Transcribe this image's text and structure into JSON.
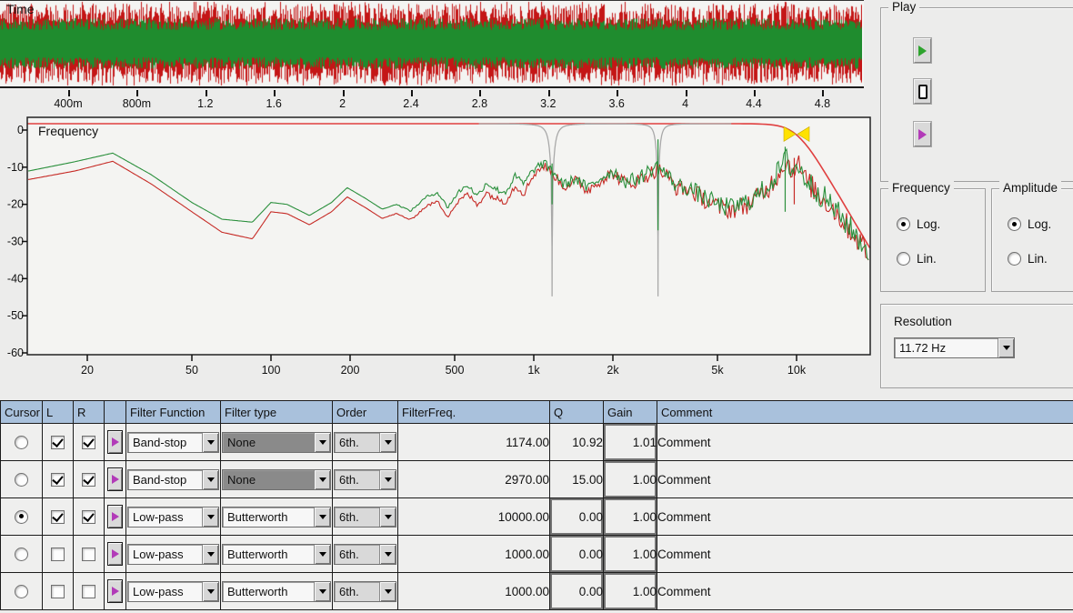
{
  "colors": {
    "window_bg": "#ececeb",
    "plot_bg": "#f4f4f2",
    "wave_red": "#c41616",
    "wave_green": "#1f8c2e",
    "spec_red": "#c62b26",
    "spec_green": "#2a8f3c",
    "filter_red": "#e04040",
    "notch_gray": "#a9a9a9",
    "marker_yellow": "#ffe200",
    "header_blue": "#a9c1dc",
    "disabled_gray": "#8a8a8a"
  },
  "time_plot": {
    "title": "Time",
    "x_tick_labels": [
      "400m",
      "800m",
      "1.2",
      "1.6",
      "2",
      "2.4",
      "2.8",
      "3.2",
      "3.6",
      "4",
      "4.4",
      "4.8"
    ]
  },
  "freq_plot": {
    "title": "Frequency",
    "y_tick_labels": [
      "0",
      "-10",
      "-20",
      "-30",
      "-40",
      "-50",
      "-60"
    ],
    "x_tick_labels": [
      "20",
      "50",
      "100",
      "200",
      "500",
      "1k",
      "2k",
      "5k",
      "10k"
    ]
  },
  "chart_data": [
    {
      "type": "line",
      "name": "time-waveform",
      "title": "Time",
      "x_ticks": [
        "400m",
        "800m",
        "1.2",
        "1.6",
        "2",
        "2.4",
        "2.8",
        "3.2",
        "3.6",
        "4",
        "4.4",
        "4.8"
      ],
      "description": "Stereo broadband noise vs time; red channel has larger peak amplitude, green channel denser core band",
      "series": [
        {
          "name": "left",
          "color": "#c41616"
        },
        {
          "name": "right",
          "color": "#1f8c2e"
        }
      ]
    },
    {
      "type": "line",
      "name": "frequency-spectrum",
      "title": "Frequency",
      "x_scale": "log",
      "xlim": [
        11.8,
        19000
      ],
      "ylim": [
        -60,
        0
      ],
      "y_ticks": [
        0,
        -10,
        -20,
        -30,
        -40,
        -50,
        -60
      ],
      "x_ticks": [
        "20",
        "50",
        "100",
        "200",
        "500",
        "1k",
        "2k",
        "5k",
        "10k"
      ],
      "jitter": {
        "start_freq": 260,
        "factor": 2.0,
        "max_db": 3.4
      },
      "series": [
        {
          "name": "left-spectrum",
          "color": "#c62b26",
          "spikes": [
            [
              9800,
              -7.5,
              -20
            ]
          ],
          "points": [
            [
              12,
              -13.3
            ],
            [
              18,
              -11
            ],
            [
              25,
              -8.4
            ],
            [
              35,
              -14.5
            ],
            [
              50,
              -22
            ],
            [
              65,
              -27.5
            ],
            [
              85,
              -29.3
            ],
            [
              100,
              -22
            ],
            [
              115,
              -22.5
            ],
            [
              140,
              -25.5
            ],
            [
              170,
              -22
            ],
            [
              195,
              -18
            ],
            [
              230,
              -21
            ],
            [
              265,
              -23.8
            ],
            [
              300,
              -22.5
            ],
            [
              340,
              -24.2
            ],
            [
              390,
              -20.5
            ],
            [
              430,
              -19.2
            ],
            [
              470,
              -23.2
            ],
            [
              520,
              -19
            ],
            [
              560,
              -17.2
            ],
            [
              610,
              -20.2
            ],
            [
              660,
              -16.8
            ],
            [
              720,
              -18.5
            ],
            [
              780,
              -19.2
            ],
            [
              850,
              -15
            ],
            [
              920,
              -17
            ],
            [
              1000,
              -11.8
            ],
            [
              1090,
              -9.6
            ],
            [
              1174,
              -11.4
            ],
            [
              1300,
              -15.3
            ],
            [
              1450,
              -13.6
            ],
            [
              1600,
              -16.3
            ],
            [
              1800,
              -13.3
            ],
            [
              2000,
              -11.6
            ],
            [
              2250,
              -14.5
            ],
            [
              2500,
              -13.6
            ],
            [
              2750,
              -11.8
            ],
            [
              2970,
              -10.6
            ],
            [
              3200,
              -12.4
            ],
            [
              3500,
              -15.6
            ],
            [
              3900,
              -16
            ],
            [
              4400,
              -18.4
            ],
            [
              5000,
              -20.6
            ],
            [
              5600,
              -21.4
            ],
            [
              6200,
              -20.6
            ],
            [
              7000,
              -18.6
            ],
            [
              7800,
              -15.6
            ],
            [
              8600,
              -11.4
            ],
            [
              9100,
              -8
            ],
            [
              9600,
              -11.2
            ],
            [
              10000,
              -8.2
            ],
            [
              10800,
              -13.4
            ],
            [
              12000,
              -17
            ],
            [
              13500,
              -20.4
            ],
            [
              15000,
              -24.4
            ],
            [
              16500,
              -28
            ],
            [
              18000,
              -31.4
            ],
            [
              19000,
              -34
            ]
          ]
        },
        {
          "name": "right-spectrum",
          "color": "#2a8f3c",
          "spikes": [
            [
              1174,
              -9,
              -20
            ],
            [
              2970,
              -2.5,
              -27
            ],
            [
              9050,
              -4.5,
              -22
            ]
          ],
          "points": [
            [
              12,
              -11
            ],
            [
              18,
              -8.5
            ],
            [
              25,
              -6.2
            ],
            [
              35,
              -12
            ],
            [
              50,
              -19.5
            ],
            [
              65,
              -24
            ],
            [
              85,
              -24.8
            ],
            [
              100,
              -19.5
            ],
            [
              115,
              -20
            ],
            [
              140,
              -23
            ],
            [
              170,
              -19.5
            ],
            [
              195,
              -15.5
            ],
            [
              230,
              -18.5
            ],
            [
              265,
              -21.3
            ],
            [
              300,
              -20
            ],
            [
              340,
              -21.8
            ],
            [
              390,
              -18
            ],
            [
              430,
              -16.8
            ],
            [
              470,
              -20.8
            ],
            [
              520,
              -16.5
            ],
            [
              560,
              -14.8
            ],
            [
              610,
              -17.8
            ],
            [
              660,
              -14.2
            ],
            [
              720,
              -16
            ],
            [
              780,
              -16.8
            ],
            [
              850,
              -12.5
            ],
            [
              920,
              -14.5
            ],
            [
              1000,
              -10.5
            ],
            [
              1090,
              -9
            ],
            [
              1174,
              -10.8
            ],
            [
              1300,
              -14.8
            ],
            [
              1450,
              -13
            ],
            [
              1600,
              -15.8
            ],
            [
              1800,
              -12.8
            ],
            [
              2000,
              -11
            ],
            [
              2250,
              -14
            ],
            [
              2500,
              -13
            ],
            [
              2750,
              -11
            ],
            [
              2970,
              -9.8
            ],
            [
              3200,
              -12
            ],
            [
              3500,
              -15
            ],
            [
              3900,
              -15.5
            ],
            [
              4400,
              -18
            ],
            [
              5000,
              -20
            ],
            [
              5600,
              -21
            ],
            [
              6200,
              -20
            ],
            [
              7000,
              -18
            ],
            [
              7800,
              -15
            ],
            [
              8600,
              -10.8
            ],
            [
              9100,
              -7.5
            ],
            [
              9600,
              -10.8
            ],
            [
              10000,
              -9.5
            ],
            [
              10800,
              -13
            ],
            [
              12000,
              -16.5
            ],
            [
              13500,
              -20
            ],
            [
              15000,
              -24
            ],
            [
              16500,
              -27.5
            ],
            [
              18000,
              -31
            ],
            [
              19000,
              -33
            ]
          ]
        }
      ],
      "filters": [
        {
          "type": "band-stop",
          "freq": 1174,
          "q": 10.92,
          "color": "#a9a9a9"
        },
        {
          "type": "band-stop",
          "freq": 2970,
          "q": 15.0,
          "color": "#a9a9a9"
        },
        {
          "type": "low-pass",
          "freq": 10000,
          "order": 6,
          "color": "#e04040"
        }
      ],
      "marker": {
        "freq": 10000,
        "db": -2.8,
        "color": "#ffe200"
      }
    }
  ],
  "play_group": {
    "label": "Play",
    "buttons": [
      {
        "name": "play-button",
        "icon": "play-green-icon"
      },
      {
        "name": "stop-button",
        "icon": "stop-icon"
      },
      {
        "name": "play-filtered-button",
        "icon": "play-magenta-icon"
      }
    ]
  },
  "frequency_group": {
    "label": "Frequency",
    "options": [
      {
        "label": "Log.",
        "selected": true
      },
      {
        "label": "Lin.",
        "selected": false
      }
    ]
  },
  "amplitude_group": {
    "label": "Amplitude",
    "options": [
      {
        "label": "Log.",
        "selected": true
      },
      {
        "label": "Lin.",
        "selected": false
      }
    ]
  },
  "resolution_group": {
    "label": "Resolution",
    "value": "11.72 Hz"
  },
  "filter_table": {
    "headers": [
      "Cursor",
      "L",
      "R",
      "",
      "Filter Function",
      "Filter type",
      "Order",
      "FilterFreq.",
      "Q",
      "Gain",
      "Comment"
    ],
    "rows": [
      {
        "cursor": false,
        "l": true,
        "r": true,
        "function": "Band-stop",
        "type": "None",
        "type_disabled": true,
        "order": "6th.",
        "freq": "1174.00",
        "q": "10.92",
        "q_disabled": false,
        "gain": "1.01",
        "gain_disabled": true,
        "comment": "Comment"
      },
      {
        "cursor": false,
        "l": true,
        "r": true,
        "function": "Band-stop",
        "type": "None",
        "type_disabled": true,
        "order": "6th.",
        "freq": "2970.00",
        "q": "15.00",
        "q_disabled": false,
        "gain": "1.00",
        "gain_disabled": true,
        "comment": "Comment"
      },
      {
        "cursor": true,
        "l": true,
        "r": true,
        "function": "Low-pass",
        "type": "Butterworth",
        "type_disabled": false,
        "order": "6th.",
        "freq": "10000.00",
        "q": "0.00",
        "q_disabled": true,
        "gain": "1.00",
        "gain_disabled": true,
        "comment": "Comment"
      },
      {
        "cursor": false,
        "l": false,
        "r": false,
        "function": "Low-pass",
        "type": "Butterworth",
        "type_disabled": false,
        "order": "6th.",
        "freq": "1000.00",
        "q": "0.00",
        "q_disabled": true,
        "gain": "1.00",
        "gain_disabled": true,
        "comment": "Comment"
      },
      {
        "cursor": false,
        "l": false,
        "r": false,
        "function": "Low-pass",
        "type": "Butterworth",
        "type_disabled": false,
        "order": "6th.",
        "freq": "1000.00",
        "q": "0.00",
        "q_disabled": true,
        "gain": "1.00",
        "gain_disabled": true,
        "comment": "Comment"
      }
    ]
  }
}
